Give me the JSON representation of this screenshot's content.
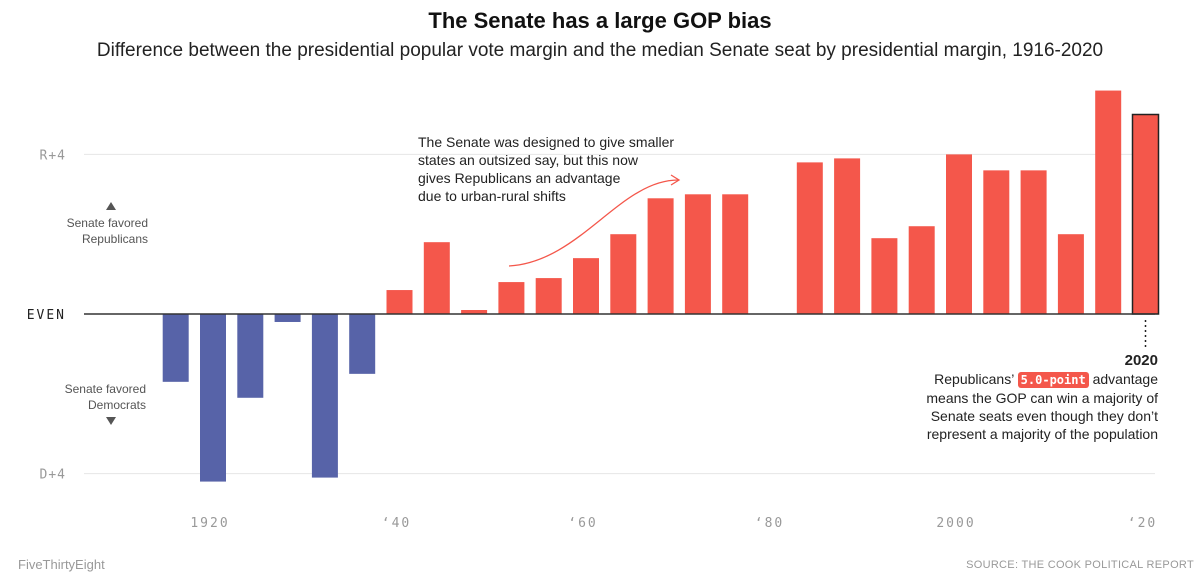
{
  "header": {
    "title": "The Senate has a large GOP bias",
    "subtitle": "Difference between the presidential popular vote margin and the median Senate seat by presidential margin, 1916-2020"
  },
  "colors": {
    "republican": "#f4574b",
    "democrat": "#5763a8",
    "baseline": "#333333",
    "grid": "#e6e6e6"
  },
  "chart_data": {
    "type": "bar",
    "title": "The Senate has a large GOP bias",
    "subtitle": "Difference between the presidential popular vote margin and the median Senate seat by presidential margin, 1916-2020",
    "xlabel": "",
    "ylabel": "",
    "ylim": [
      -4.5,
      6
    ],
    "grid": true,
    "sign_convention": "positive = Senate favored Republicans, negative = Senate favored Democrats",
    "yticks": [
      {
        "value": 4,
        "label": "R+4"
      },
      {
        "value": 0,
        "label": "EVEN"
      },
      {
        "value": -4,
        "label": "D+4"
      }
    ],
    "xticks": [
      {
        "value": 1920,
        "label": "1920"
      },
      {
        "value": 1940,
        "label": "‘40"
      },
      {
        "value": 1960,
        "label": "‘60"
      },
      {
        "value": 1980,
        "label": "‘80"
      },
      {
        "value": 2000,
        "label": "2000"
      },
      {
        "value": 2020,
        "label": "‘20"
      }
    ],
    "x": [
      1916,
      1920,
      1924,
      1928,
      1932,
      1936,
      1940,
      1944,
      1948,
      1952,
      1956,
      1960,
      1964,
      1968,
      1972,
      1976,
      1984,
      1988,
      1992,
      1996,
      2000,
      2004,
      2008,
      2012,
      2016,
      2020
    ],
    "values": [
      -1.7,
      -4.2,
      -2.1,
      -0.2,
      -4.1,
      -1.5,
      0.6,
      1.8,
      0.1,
      0.8,
      0.9,
      1.4,
      2.0,
      2.9,
      3.0,
      3.0,
      3.8,
      3.9,
      1.9,
      2.2,
      4.0,
      3.6,
      3.6,
      2.0,
      5.6,
      5.0
    ],
    "highlight": 2020,
    "side_labels": {
      "up": "Senate favored\nRepublicans",
      "down": "Senate favored\nDemocrats"
    }
  },
  "annotations": {
    "senate_design": {
      "lines": [
        "The Senate was designed to give smaller",
        "states an outsized say, but this now",
        "gives Republicans an advantage",
        "due to urban-rural shifts"
      ]
    },
    "y2020": {
      "year": "2020",
      "prefix": "Republicans’",
      "highlight": "5.0-point",
      "line1_suffix": "advantage",
      "line2": "means the GOP can win a majority of",
      "line3": "Senate seats even though they don’t",
      "line4": "represent a majority of the population"
    }
  },
  "footer": {
    "brand": "FiveThirtyEight",
    "source": "SOURCE: THE COOK POLITICAL REPORT"
  }
}
